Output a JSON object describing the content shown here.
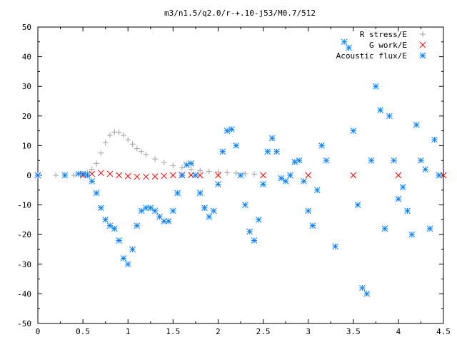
{
  "chart_data": {
    "type": "scatter",
    "title": "m3/n1.5/q2.0/r-+.10-j53/M0.7/512",
    "xlabel": "",
    "ylabel": "",
    "xlim": [
      0,
      4.5
    ],
    "ylim": [
      -50,
      50
    ],
    "x_ticks": [
      0,
      0.5,
      1,
      1.5,
      2,
      2.5,
      3,
      3.5,
      4,
      4.5
    ],
    "x_tick_labels": [
      "0",
      "0.5",
      "1",
      "1.5",
      "2",
      "2.5",
      "3",
      "3.5",
      "4",
      "4.5"
    ],
    "y_ticks": [
      -50,
      -40,
      -30,
      -20,
      -10,
      0,
      10,
      20,
      30,
      40,
      50
    ],
    "y_tick_labels": [
      "-50",
      "-40",
      "-30",
      "-20",
      "-10",
      "0",
      "10",
      "20",
      "30",
      "40",
      "50"
    ],
    "grid": false,
    "legend_position": "top-right",
    "series": [
      {
        "name": "R stress/E",
        "marker": "plus",
        "color": "#a0a0a0",
        "x": [
          0.0,
          0.2,
          0.4,
          0.5,
          0.55,
          0.6,
          0.65,
          0.7,
          0.75,
          0.8,
          0.85,
          0.9,
          0.95,
          1.0,
          1.05,
          1.1,
          1.15,
          1.2,
          1.3,
          1.4,
          1.5,
          1.6,
          1.7,
          1.8,
          1.9,
          2.0,
          2.1,
          2.2,
          2.3,
          2.4
        ],
        "y": [
          0,
          0,
          0,
          0.3,
          0.8,
          2,
          4,
          7.5,
          11,
          13.5,
          14.6,
          14.5,
          13.5,
          12,
          10.5,
          9,
          8,
          7,
          5.5,
          4.3,
          3.3,
          2.6,
          2,
          1.6,
          1.3,
          1.1,
          0.9,
          0.7,
          0.5,
          0.4
        ]
      },
      {
        "name": "G work/E",
        "marker": "cross",
        "color": "#ff0000",
        "x": [
          0.0,
          0.5,
          0.6,
          0.7,
          0.8,
          0.9,
          1.0,
          1.1,
          1.2,
          1.3,
          1.4,
          1.5,
          1.6,
          1.7,
          1.8,
          2.0,
          2.5,
          3.0,
          3.5,
          4.0,
          4.5
        ],
        "y": [
          0,
          0,
          0.5,
          0.8,
          0.5,
          0,
          -0.3,
          -0.5,
          -0.5,
          -0.4,
          -0.2,
          0,
          0.1,
          0.1,
          0,
          0,
          0,
          0,
          0,
          0,
          0
        ]
      },
      {
        "name": "Acoustic flux/E",
        "marker": "star",
        "color": "#0080ff",
        "x": [
          0.0,
          0.3,
          0.45,
          0.5,
          0.55,
          0.6,
          0.65,
          0.7,
          0.75,
          0.8,
          0.85,
          0.9,
          0.95,
          1.0,
          1.05,
          1.1,
          1.15,
          1.2,
          1.25,
          1.3,
          1.35,
          1.4,
          1.45,
          1.5,
          1.55,
          1.6,
          1.65,
          1.7,
          1.75,
          1.8,
          1.85,
          1.9,
          1.95,
          2.0,
          2.05,
          2.1,
          2.15,
          2.2,
          2.25,
          2.3,
          2.35,
          2.4,
          2.45,
          2.5,
          2.55,
          2.6,
          2.65,
          2.7,
          2.75,
          2.8,
          2.85,
          2.9,
          2.95,
          3.0,
          3.05,
          3.1,
          3.15,
          3.2,
          3.3,
          3.4,
          3.45,
          3.5,
          3.55,
          3.6,
          3.65,
          3.7,
          3.75,
          3.8,
          3.85,
          3.9,
          3.95,
          4.0,
          4.05,
          4.1,
          4.15,
          4.2,
          4.25,
          4.3,
          4.35,
          4.4,
          4.45
        ],
        "y": [
          0,
          0,
          0.5,
          0.5,
          0,
          -2,
          -6,
          -11,
          -15,
          -17,
          -18,
          -22,
          -28,
          -30,
          -25,
          -17,
          -12,
          -11,
          -11,
          -12,
          -14,
          -15.5,
          -15.5,
          -12,
          -6,
          0,
          3.5,
          4,
          0,
          -6,
          -11,
          -14,
          -12,
          -3,
          8,
          15,
          15.5,
          10,
          0,
          -10,
          -19,
          -22,
          -15,
          -3,
          8,
          12.5,
          8,
          -1,
          -2,
          0,
          4.5,
          5,
          -2,
          -12,
          -17,
          -5,
          10,
          5,
          -24,
          45,
          43,
          15,
          -10,
          -38,
          -40,
          5,
          30,
          22,
          -18,
          20,
          5,
          -8,
          -4,
          -12,
          -20,
          17,
          5,
          2,
          -18,
          12,
          0
        ]
      }
    ]
  }
}
